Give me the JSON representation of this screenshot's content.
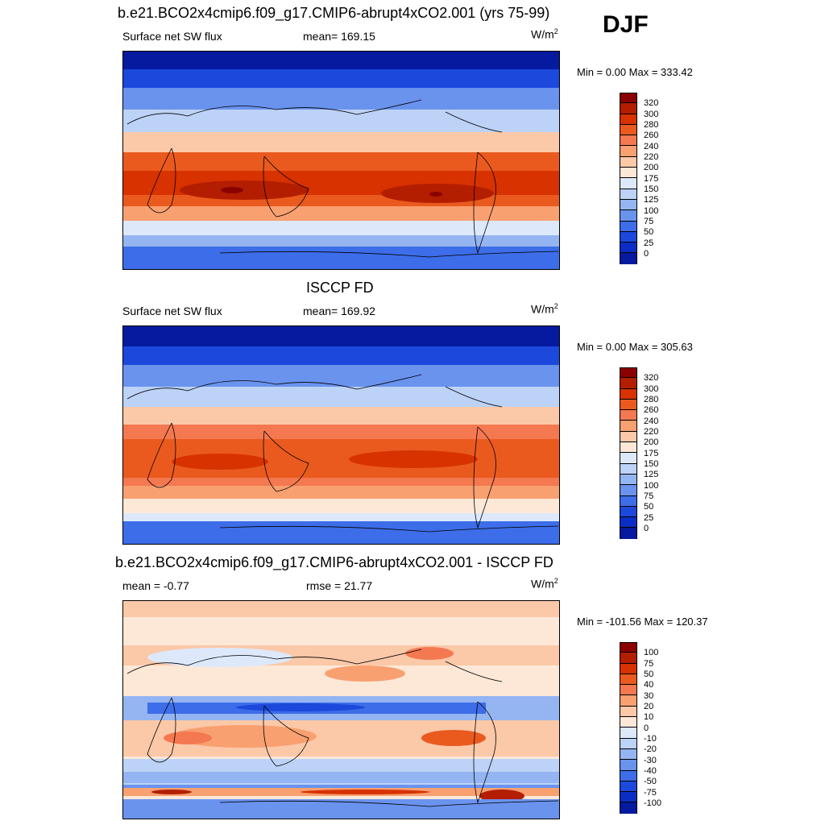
{
  "season": "DJF",
  "panels": [
    {
      "title": "b.e21.BCO2x4cmip6.f09_g17.CMIP6-abrupt4xCO2.001 (yrs 75-99)",
      "left_label": "Surface net SW flux",
      "center_label": "mean= 169.15",
      "unit_base": "W/m",
      "unit_exp": "2",
      "minmax": "Min =   0.00 Max = 333.42",
      "colorbar_labels": [
        "320",
        "300",
        "280",
        "260",
        "240",
        "220",
        "200",
        "175",
        "150",
        "125",
        "100",
        "75",
        "50",
        "25",
        "0"
      ]
    },
    {
      "title": "ISCCP FD",
      "left_label": "Surface net SW flux",
      "center_label": "mean= 169.92",
      "unit_base": "W/m",
      "unit_exp": "2",
      "minmax": "Min =   0.00 Max = 305.63",
      "colorbar_labels": [
        "320",
        "300",
        "280",
        "260",
        "240",
        "220",
        "200",
        "175",
        "150",
        "125",
        "100",
        "75",
        "50",
        "25",
        "0"
      ]
    },
    {
      "title": "b.e21.BCO2x4cmip6.f09_g17.CMIP6-abrupt4xCO2.001 - ISCCP FD",
      "left_label": "mean =  -0.77",
      "center_label": "rmse =  21.77",
      "unit_base": "W/m",
      "unit_exp": "2",
      "minmax": "Min = -101.56 Max = 120.37",
      "colorbar_labels": [
        "100",
        "75",
        "50",
        "40",
        "30",
        "20",
        "10",
        "0",
        "-10",
        "-20",
        "-30",
        "-40",
        "-50",
        "-75",
        "-100"
      ]
    }
  ],
  "colors": {
    "scale": [
      "#8b0000",
      "#b41e00",
      "#d73200",
      "#ea5a1e",
      "#f47850",
      "#f8a070",
      "#fbc8a8",
      "#fde8d8",
      "#dde9fb",
      "#bcd2f7",
      "#94b5f2",
      "#6a93ee",
      "#3d6de8",
      "#1c48dc",
      "#0a2ec4",
      "#051a9e"
    ]
  }
}
